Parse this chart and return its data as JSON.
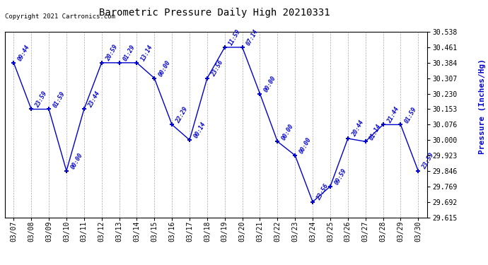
{
  "title": "Barometric Pressure Daily High 20210331",
  "ylabel": "Pressure (Inches/Hg)",
  "copyright": "Copyright 2021 Cartronics.com",
  "line_color": "#0000CC",
  "marker_color": "#0000CC",
  "background_color": "#ffffff",
  "grid_color": "#aaaaaa",
  "ylim": [
    29.615,
    30.538
  ],
  "yticks": [
    30.538,
    30.461,
    30.384,
    30.307,
    30.23,
    30.153,
    30.076,
    30.0,
    29.923,
    29.846,
    29.769,
    29.692,
    29.615
  ],
  "dates": [
    "03/07",
    "03/08",
    "03/09",
    "03/10",
    "03/11",
    "03/12",
    "03/13",
    "03/14",
    "03/15",
    "03/16",
    "03/17",
    "03/18",
    "03/19",
    "03/20",
    "03/21",
    "03/22",
    "03/23",
    "03/24",
    "03/25",
    "03/26",
    "03/27",
    "03/28",
    "03/29",
    "03/30"
  ],
  "values": [
    30.384,
    30.153,
    30.153,
    29.846,
    30.153,
    30.384,
    30.384,
    30.384,
    30.307,
    30.076,
    30.0,
    30.307,
    30.461,
    30.461,
    30.23,
    29.992,
    29.923,
    29.692,
    29.769,
    30.007,
    29.992,
    30.076,
    30.076,
    29.846
  ],
  "annotations": [
    "09:44",
    "23:59",
    "01:59",
    "00:00",
    "23:44",
    "20:59",
    "01:29",
    "13:14",
    "00:00",
    "22:29",
    "00:14",
    "23:56",
    "11:59",
    "07:14",
    "00:00",
    "00:00",
    "00:00",
    "23:56",
    "09:59",
    "20:44",
    "01:14",
    "21:44",
    "01:59",
    "23:59"
  ]
}
